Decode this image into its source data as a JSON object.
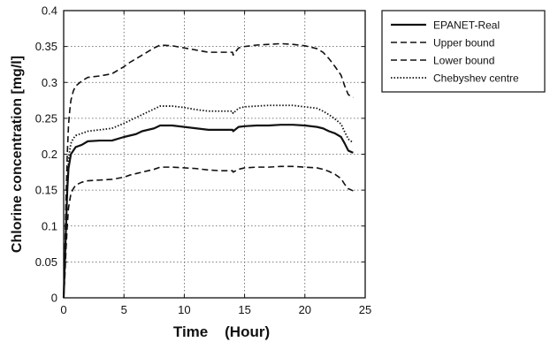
{
  "chart_data": {
    "type": "line",
    "title": "",
    "xlabel": "Time    (Hour)",
    "ylabel": "Chlorine concentration [mg/l]",
    "xlim": [
      0,
      25
    ],
    "ylim": [
      0,
      0.4
    ],
    "xticks": [
      "0",
      "5",
      "10",
      "15",
      "20",
      "25"
    ],
    "yticks": [
      "0",
      "0.05",
      "0.1",
      "0.15",
      "0.2",
      "0.25",
      "0.3",
      "0.35",
      "0.4"
    ],
    "grid": true,
    "legend_position": "outside-right",
    "series": [
      {
        "name": "EPANET-Real",
        "style": "solid",
        "x": [
          0,
          0.1,
          0.2,
          0.3,
          0.4,
          0.5,
          0.6,
          0.8,
          1.0,
          1.5,
          2,
          3,
          4,
          5,
          5.5,
          6,
          6.5,
          7,
          7.5,
          8,
          9,
          10,
          11,
          12,
          13,
          14,
          14.05,
          14.5,
          15,
          16,
          17,
          18,
          19,
          20,
          21,
          21.5,
          22,
          22.5,
          23,
          23.3,
          23.6,
          24
        ],
        "values": [
          0,
          0.05,
          0.1,
          0.15,
          0.18,
          0.19,
          0.2,
          0.205,
          0.21,
          0.213,
          0.218,
          0.219,
          0.219,
          0.224,
          0.226,
          0.228,
          0.232,
          0.234,
          0.236,
          0.24,
          0.24,
          0.238,
          0.236,
          0.234,
          0.234,
          0.234,
          0.232,
          0.238,
          0.239,
          0.24,
          0.24,
          0.241,
          0.241,
          0.24,
          0.238,
          0.236,
          0.232,
          0.229,
          0.224,
          0.215,
          0.205,
          0.202
        ]
      },
      {
        "name": "Upper bound",
        "style": "dashed",
        "x": [
          0,
          0.1,
          0.2,
          0.3,
          0.4,
          0.5,
          0.6,
          0.8,
          1.0,
          1.5,
          2,
          3,
          4,
          5,
          5.5,
          6,
          6.5,
          7,
          7.5,
          8,
          9,
          10,
          11,
          12,
          13,
          14,
          14.05,
          14.5,
          15,
          16,
          17,
          18,
          19,
          20,
          21,
          21.5,
          22,
          22.5,
          23,
          23.3,
          23.6,
          24
        ],
        "values": [
          0,
          0.07,
          0.14,
          0.2,
          0.24,
          0.26,
          0.275,
          0.288,
          0.295,
          0.302,
          0.307,
          0.309,
          0.312,
          0.322,
          0.328,
          0.333,
          0.338,
          0.343,
          0.348,
          0.352,
          0.351,
          0.348,
          0.345,
          0.342,
          0.342,
          0.342,
          0.338,
          0.348,
          0.35,
          0.352,
          0.353,
          0.354,
          0.353,
          0.351,
          0.347,
          0.342,
          0.333,
          0.322,
          0.31,
          0.295,
          0.283,
          0.279
        ]
      },
      {
        "name": "Lower bound",
        "style": "dashed",
        "x": [
          0,
          0.1,
          0.2,
          0.3,
          0.4,
          0.5,
          0.6,
          0.8,
          1.0,
          1.5,
          2,
          3,
          4,
          5,
          5.5,
          6,
          6.5,
          7,
          7.5,
          8,
          9,
          10,
          11,
          12,
          13,
          14,
          14.05,
          14.5,
          15,
          16,
          17,
          18,
          19,
          20,
          21,
          21.5,
          22,
          22.5,
          23,
          23.3,
          23.6,
          24
        ],
        "values": [
          0,
          0.03,
          0.07,
          0.1,
          0.125,
          0.135,
          0.145,
          0.152,
          0.157,
          0.161,
          0.163,
          0.164,
          0.165,
          0.168,
          0.171,
          0.173,
          0.175,
          0.177,
          0.179,
          0.182,
          0.182,
          0.181,
          0.18,
          0.178,
          0.177,
          0.177,
          0.175,
          0.179,
          0.181,
          0.182,
          0.182,
          0.183,
          0.183,
          0.182,
          0.181,
          0.179,
          0.176,
          0.172,
          0.166,
          0.158,
          0.152,
          0.149
        ]
      },
      {
        "name": "Chebyshev centre",
        "style": "dotted",
        "x": [
          0,
          0.1,
          0.2,
          0.3,
          0.4,
          0.5,
          0.6,
          0.8,
          1.0,
          1.5,
          2,
          3,
          4,
          5,
          5.5,
          6,
          6.5,
          7,
          7.5,
          8,
          9,
          10,
          11,
          12,
          13,
          14,
          14.05,
          14.5,
          15,
          16,
          17,
          18,
          19,
          20,
          21,
          21.5,
          22,
          22.5,
          23,
          23.3,
          23.6,
          24
        ],
        "values": [
          0,
          0.05,
          0.11,
          0.16,
          0.19,
          0.205,
          0.215,
          0.222,
          0.226,
          0.229,
          0.232,
          0.234,
          0.236,
          0.243,
          0.247,
          0.251,
          0.255,
          0.259,
          0.263,
          0.267,
          0.267,
          0.265,
          0.262,
          0.26,
          0.26,
          0.26,
          0.257,
          0.264,
          0.266,
          0.267,
          0.268,
          0.268,
          0.268,
          0.266,
          0.264,
          0.26,
          0.255,
          0.249,
          0.242,
          0.231,
          0.221,
          0.216
        ]
      }
    ]
  }
}
